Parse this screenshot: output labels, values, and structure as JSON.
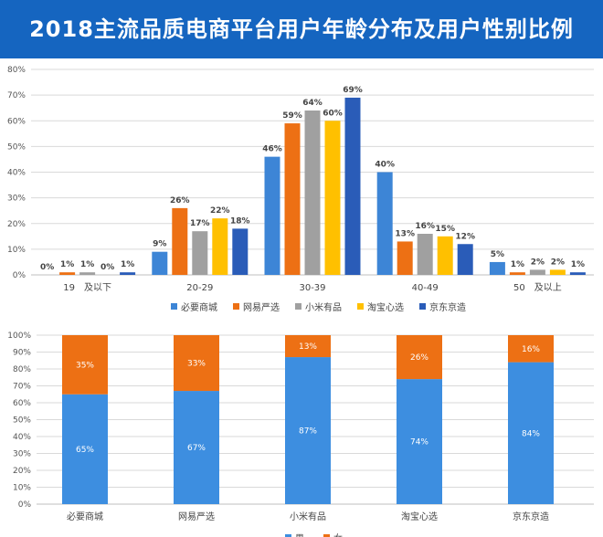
{
  "title": "2018主流品质电商平台用户年龄分布及用户性别比例",
  "colors": {
    "banner": "#1565c0",
    "grid": "#d9d9d9",
    "axis": "#bfbfbf"
  },
  "chart_data": [
    {
      "type": "bar",
      "categories": [
        "19　及以下",
        "20-29",
        "30-39",
        "40-49",
        "50　及以上"
      ],
      "series": [
        {
          "name": "必要商城",
          "color": "#3d85d6",
          "values": [
            0,
            9,
            46,
            40,
            5
          ],
          "labels": [
            "0%",
            "9%",
            "46%",
            "40%",
            "5%"
          ]
        },
        {
          "name": "网易严选",
          "color": "#ed7014",
          "values": [
            1,
            26,
            59,
            13,
            1
          ],
          "labels": [
            "1%",
            "26%",
            "59%",
            "13%",
            "1%"
          ]
        },
        {
          "name": "小米有品",
          "color": "#a0a0a0",
          "values": [
            1,
            17,
            64,
            16,
            2
          ],
          "labels": [
            "1%",
            "17%",
            "64%",
            "16%",
            "2%"
          ]
        },
        {
          "name": "淘宝心选",
          "color": "#ffc000",
          "values": [
            0,
            22,
            60,
            15,
            2
          ],
          "labels": [
            "0%",
            "22%",
            "60%",
            "15%",
            "2%"
          ]
        },
        {
          "name": "京东京造",
          "color": "#2a5cb8",
          "values": [
            1,
            18,
            69,
            12,
            1
          ],
          "labels": [
            "1%",
            "18%",
            "69%",
            "12%",
            "1%"
          ]
        }
      ],
      "ylim": [
        0,
        80
      ],
      "yticks": [
        "0%",
        "10%",
        "20%",
        "30%",
        "40%",
        "50%",
        "60%",
        "70%",
        "80%"
      ],
      "grid": true,
      "legend": "bottom"
    },
    {
      "type": "bar",
      "stacked": true,
      "categories": [
        "必要商城",
        "网易严选",
        "小米有品",
        "淘宝心选",
        "京东京造"
      ],
      "series": [
        {
          "name": "男",
          "color": "#3d8ee0",
          "values": [
            65,
            67,
            87,
            74,
            84
          ],
          "labels": [
            "65%",
            "67%",
            "87%",
            "74%",
            "84%"
          ]
        },
        {
          "name": "女",
          "color": "#ed7014",
          "values": [
            35,
            33,
            13,
            26,
            16
          ],
          "labels": [
            "35%",
            "33%",
            "13%",
            "26%",
            "16%"
          ]
        }
      ],
      "ylim": [
        0,
        100
      ],
      "yticks": [
        "0%",
        "10%",
        "20%",
        "30%",
        "40%",
        "50%",
        "60%",
        "70%",
        "80%",
        "90%",
        "100%"
      ],
      "grid": true,
      "legend": "bottom"
    }
  ]
}
